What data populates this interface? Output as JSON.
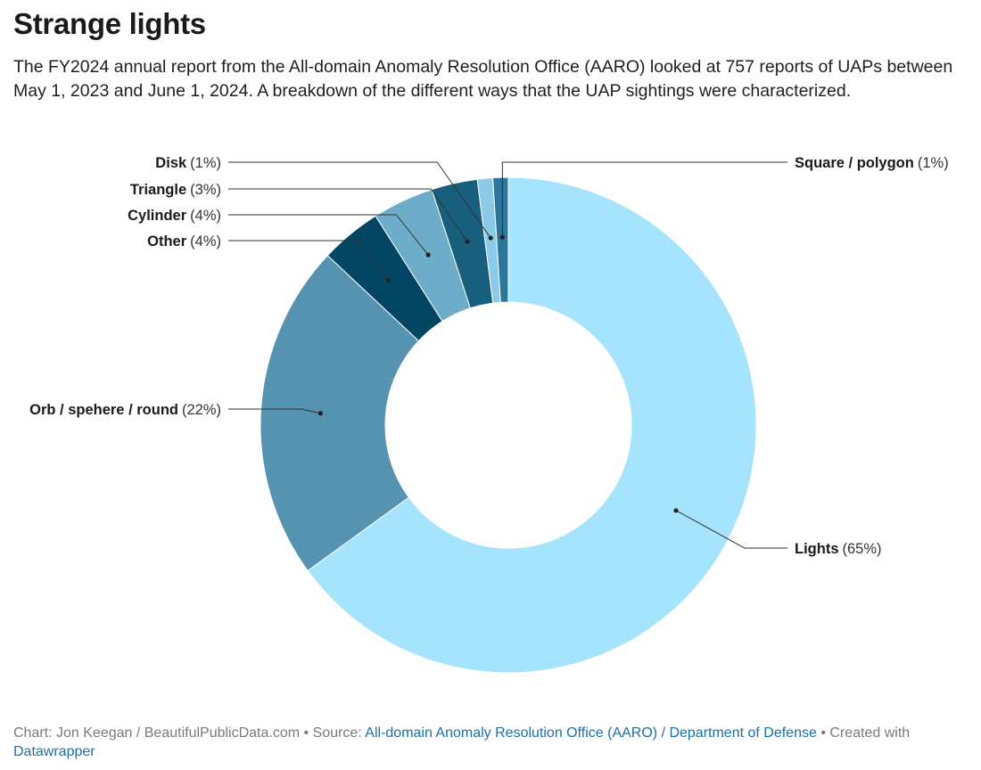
{
  "title": "Strange lights",
  "subtitle": "The FY2024 annual report from the All-domain Anomaly Resolution Office (AARO) looked at 757 reports of UAPs between May 1, 2023 and June 1, 2024. A breakdown of the different ways that the UAP sightings were characterized.",
  "chart_data": {
    "type": "pie",
    "variant": "donut",
    "title": "Strange lights",
    "unit": "%",
    "series": [
      {
        "name": "Lights",
        "label": "(65%)",
        "value": 65,
        "color": "#a6e4fd",
        "side": "right"
      },
      {
        "name": "Orb / sphere / round",
        "display_name": "Orb / spehere / round",
        "label": "(22%)",
        "value": 22,
        "color": "#5593b1",
        "side": "left"
      },
      {
        "name": "Other",
        "label": "(4%)",
        "value": 4,
        "color": "#034663",
        "side": "left"
      },
      {
        "name": "Cylinder",
        "label": "(4%)",
        "value": 4,
        "color": "#6eadc9",
        "side": "left"
      },
      {
        "name": "Triangle",
        "label": "(3%)",
        "value": 3,
        "color": "#185f7e",
        "side": "left"
      },
      {
        "name": "Disk",
        "label": "(1%)",
        "value": 1,
        "color": "#8ccbe7",
        "side": "left"
      },
      {
        "name": "Square / polygon",
        "label": "(1%)",
        "value": 1,
        "color": "#2c7799",
        "side": "right"
      }
    ]
  },
  "footer": {
    "credit": "Chart: Jon Keegan / BeautifulPublicData.com",
    "separator": " • ",
    "source_label": "Source:",
    "source_link": "All-domain Anomaly Resolution Office (AARO) / Department of Defense",
    "created_with": "Created with",
    "tool_link": "Datawrapper"
  }
}
